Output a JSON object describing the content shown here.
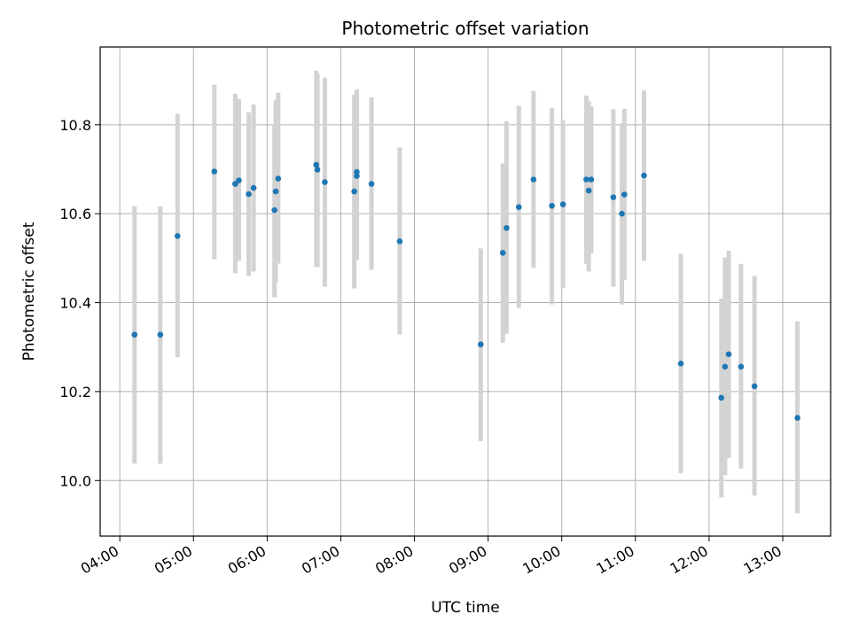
{
  "chart_data": {
    "type": "scatter",
    "title": "Photometric offset variation",
    "xlabel": "UTC time",
    "ylabel": "Photometric offset",
    "xlim": [
      "03:44",
      "13:39"
    ],
    "ylim": [
      9.875,
      10.975
    ],
    "x_ticks": [
      "04:00",
      "05:00",
      "06:00",
      "07:00",
      "08:00",
      "09:00",
      "10:00",
      "11:00",
      "12:00",
      "13:00"
    ],
    "y_ticks": [
      "10.0",
      "10.2",
      "10.4",
      "10.6",
      "10.8"
    ],
    "grid": true,
    "colors": {
      "point": "#1f77b4",
      "errorbar": "#d3d3d3"
    },
    "points": [
      {
        "x": "04:12",
        "y": 10.328,
        "ylow": 10.038,
        "yhigh": 10.617
      },
      {
        "x": "04:33",
        "y": 10.328,
        "ylow": 10.038,
        "yhigh": 10.617
      },
      {
        "x": "04:47",
        "y": 10.55,
        "ylow": 10.277,
        "yhigh": 10.825
      },
      {
        "x": "05:17",
        "y": 10.695,
        "ylow": 10.498,
        "yhigh": 10.89
      },
      {
        "x": "05:34",
        "y": 10.667,
        "ylow": 10.466,
        "yhigh": 10.87
      },
      {
        "x": "05:37",
        "y": 10.675,
        "ylow": 10.494,
        "yhigh": 10.858
      },
      {
        "x": "05:45",
        "y": 10.644,
        "ylow": 10.46,
        "yhigh": 10.828
      },
      {
        "x": "05:49",
        "y": 10.658,
        "ylow": 10.47,
        "yhigh": 10.846
      },
      {
        "x": "06:06",
        "y": 10.608,
        "ylow": 10.412,
        "yhigh": 10.8
      },
      {
        "x": "06:07",
        "y": 10.65,
        "ylow": 10.446,
        "yhigh": 10.855
      },
      {
        "x": "06:09",
        "y": 10.679,
        "ylow": 10.488,
        "yhigh": 10.872
      },
      {
        "x": "06:40",
        "y": 10.71,
        "ylow": 10.48,
        "yhigh": 10.922
      },
      {
        "x": "06:41",
        "y": 10.699,
        "ylow": 10.48,
        "yhigh": 10.915
      },
      {
        "x": "06:47",
        "y": 10.671,
        "ylow": 10.436,
        "yhigh": 10.906
      },
      {
        "x": "07:11",
        "y": 10.65,
        "ylow": 10.432,
        "yhigh": 10.868
      },
      {
        "x": "07:13",
        "y": 10.685,
        "ylow": 10.496,
        "yhigh": 10.872
      },
      {
        "x": "07:13",
        "y": 10.694,
        "ylow": 10.508,
        "yhigh": 10.88
      },
      {
        "x": "07:25",
        "y": 10.667,
        "ylow": 10.474,
        "yhigh": 10.862
      },
      {
        "x": "07:48",
        "y": 10.538,
        "ylow": 10.328,
        "yhigh": 10.749
      },
      {
        "x": "08:54",
        "y": 10.306,
        "ylow": 10.088,
        "yhigh": 10.522
      },
      {
        "x": "09:12",
        "y": 10.512,
        "ylow": 10.31,
        "yhigh": 10.713
      },
      {
        "x": "09:15",
        "y": 10.568,
        "ylow": 10.33,
        "yhigh": 10.808
      },
      {
        "x": "09:25",
        "y": 10.615,
        "ylow": 10.388,
        "yhigh": 10.843
      },
      {
        "x": "09:37",
        "y": 10.677,
        "ylow": 10.478,
        "yhigh": 10.876
      },
      {
        "x": "09:52",
        "y": 10.618,
        "ylow": 10.396,
        "yhigh": 10.838
      },
      {
        "x": "10:01",
        "y": 10.621,
        "ylow": 10.433,
        "yhigh": 10.81
      },
      {
        "x": "10:20",
        "y": 10.677,
        "ylow": 10.487,
        "yhigh": 10.866
      },
      {
        "x": "10:22",
        "y": 10.652,
        "ylow": 10.47,
        "yhigh": 10.853
      },
      {
        "x": "10:24",
        "y": 10.677,
        "ylow": 10.511,
        "yhigh": 10.841
      },
      {
        "x": "10:42",
        "y": 10.637,
        "ylow": 10.436,
        "yhigh": 10.835
      },
      {
        "x": "10:49",
        "y": 10.6,
        "ylow": 10.396,
        "yhigh": 10.803
      },
      {
        "x": "10:51",
        "y": 10.643,
        "ylow": 10.451,
        "yhigh": 10.836
      },
      {
        "x": "11:07",
        "y": 10.686,
        "ylow": 10.494,
        "yhigh": 10.877
      },
      {
        "x": "11:37",
        "y": 10.263,
        "ylow": 10.016,
        "yhigh": 10.51
      },
      {
        "x": "12:10",
        "y": 10.186,
        "ylow": 9.962,
        "yhigh": 10.409
      },
      {
        "x": "12:13",
        "y": 10.256,
        "ylow": 10.012,
        "yhigh": 10.502
      },
      {
        "x": "12:16",
        "y": 10.284,
        "ylow": 10.05,
        "yhigh": 10.517
      },
      {
        "x": "12:26",
        "y": 10.256,
        "ylow": 10.027,
        "yhigh": 10.487
      },
      {
        "x": "12:37",
        "y": 10.212,
        "ylow": 9.966,
        "yhigh": 10.46
      },
      {
        "x": "13:12",
        "y": 10.141,
        "ylow": 9.926,
        "yhigh": 10.358
      }
    ]
  }
}
